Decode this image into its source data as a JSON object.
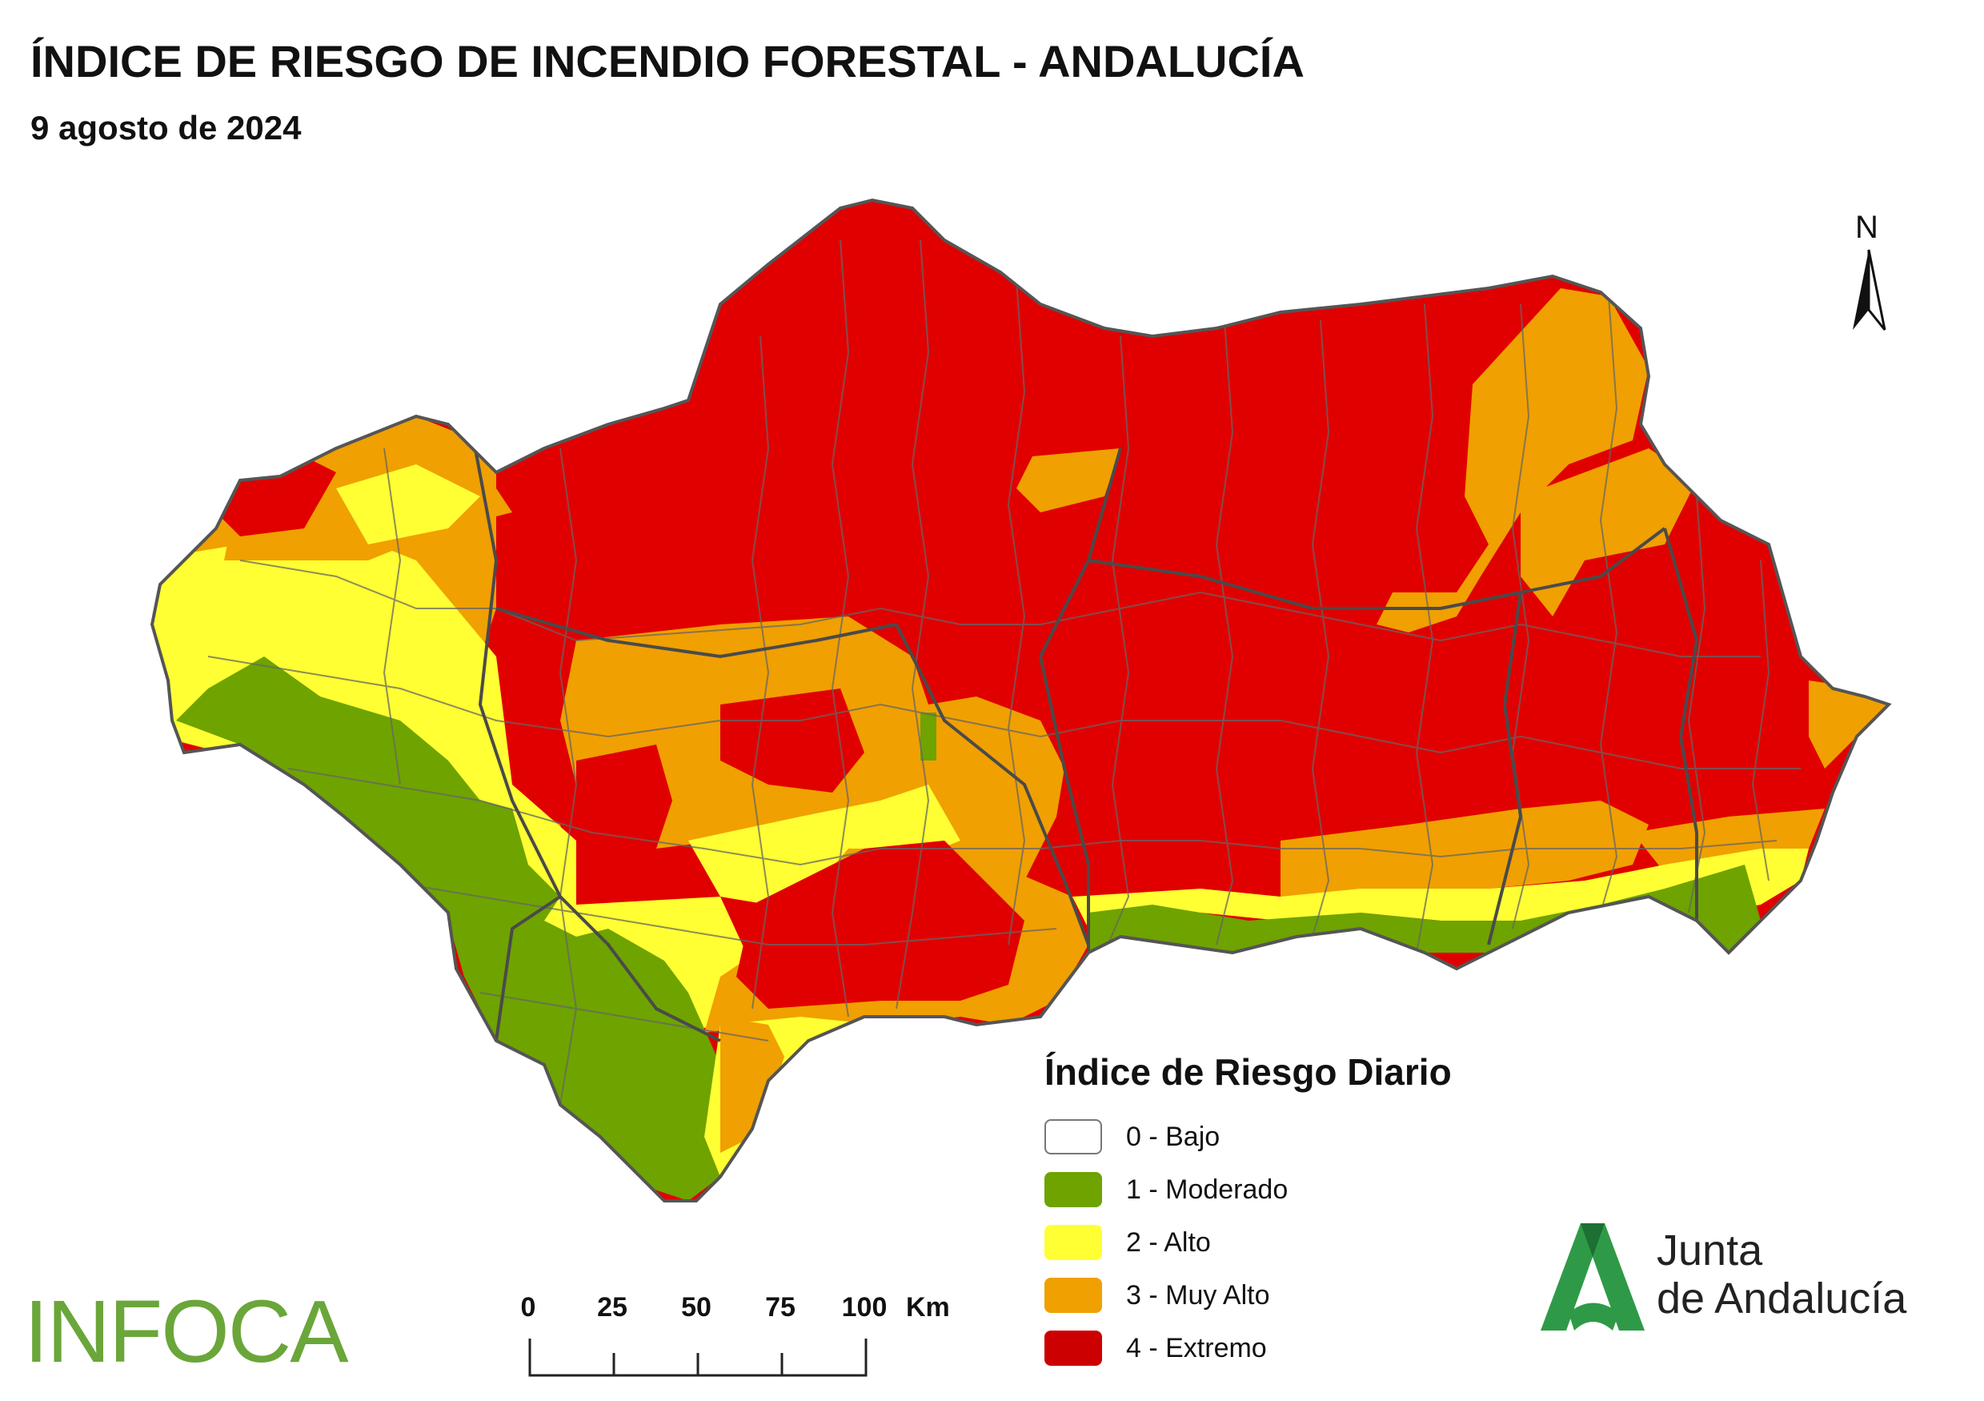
{
  "title": "ÍNDICE DE RIESGO DE INCENDIO FORESTAL - ANDALUCÍA",
  "subtitle": "9 agosto de 2024",
  "north_label": "N",
  "legend": {
    "title": "Índice de Riesgo Diario",
    "items": [
      {
        "label": "0 - Bajo",
        "color": "#ffffff"
      },
      {
        "label": "1 - Moderado",
        "color": "#6ea300"
      },
      {
        "label": "2 - Alto",
        "color": "#ffff33"
      },
      {
        "label": "3 - Muy Alto",
        "color": "#f0a000"
      },
      {
        "label": "4 - Extremo",
        "color": "#e00000"
      }
    ]
  },
  "scale": {
    "ticks": [
      "0",
      "25",
      "50",
      "75",
      "100"
    ],
    "unit": "Km"
  },
  "logos": {
    "infoca": "INFOCA",
    "junta_line1": "Junta",
    "junta_line2": "de Andalucía"
  },
  "colors": {
    "border": "#666666",
    "junta_green": "#2e9a47",
    "junta_dark": "#1d6f33"
  }
}
